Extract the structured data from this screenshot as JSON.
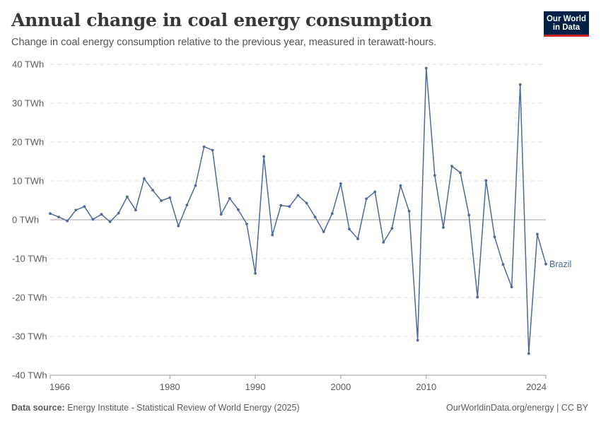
{
  "header": {
    "title": "Annual change in coal energy consumption",
    "subtitle": "Change in coal energy consumption relative to the previous year, measured in terawatt-hours."
  },
  "logo": {
    "line1": "Our World",
    "line2": "in Data"
  },
  "footer": {
    "source_label": "Data source:",
    "source_text": "Energy Institute - Statistical Review of World Energy (2025)",
    "url": "OurWorldinData.org/energy | CC BY"
  },
  "colors": {
    "series": "#4c6a9c",
    "grid": "#dddddd",
    "zero": "#a1a1a1",
    "text": "#5b5b5b"
  },
  "chart_data": {
    "type": "line",
    "title": "Annual change in coal energy consumption",
    "ylabel": "",
    "xlabel": "",
    "ylim": [
      -40,
      40
    ],
    "xlim": [
      1966,
      2024
    ],
    "y_ticks": [
      40,
      30,
      20,
      10,
      0,
      -10,
      -20,
      -30,
      -40
    ],
    "y_tick_labels": [
      "40 TWh",
      "30 TWh",
      "20 TWh",
      "10 TWh",
      "0 TWh",
      "-10 TWh",
      "-20 TWh",
      "-30 TWh",
      "-40 TWh"
    ],
    "x_ticks": [
      1966,
      1980,
      1990,
      2000,
      2010,
      2024
    ],
    "x_tick_labels": [
      "1966",
      "1980",
      "1990",
      "2000",
      "2010",
      "2024"
    ],
    "grid": true,
    "series": [
      {
        "name": "Brazil",
        "x": [
          1966,
          1967,
          1968,
          1969,
          1970,
          1971,
          1972,
          1973,
          1974,
          1975,
          1976,
          1977,
          1978,
          1979,
          1980,
          1981,
          1982,
          1983,
          1984,
          1985,
          1986,
          1987,
          1988,
          1989,
          1990,
          1991,
          1992,
          1993,
          1994,
          1995,
          1996,
          1997,
          1998,
          1999,
          2000,
          2001,
          2002,
          2003,
          2004,
          2005,
          2006,
          2007,
          2008,
          2009,
          2010,
          2011,
          2012,
          2013,
          2014,
          2015,
          2016,
          2017,
          2018,
          2019,
          2020,
          2021,
          2022,
          2023,
          2024
        ],
        "values": [
          1.6,
          0.7,
          -0.3,
          2.5,
          3.4,
          0.1,
          1.4,
          -0.5,
          1.7,
          5.9,
          2.5,
          10.6,
          7.6,
          4.9,
          5.7,
          -1.6,
          3.8,
          8.8,
          18.8,
          17.9,
          1.4,
          5.5,
          2.6,
          -1.1,
          -13.8,
          16.3,
          -3.9,
          3.7,
          3.4,
          6.3,
          4.3,
          0.7,
          -3.1,
          1.6,
          9.3,
          -2.4,
          -4.9,
          5.4,
          7.2,
          -5.8,
          -2.2,
          8.8,
          2.2,
          -31.0,
          39.0,
          11.4,
          -2.0,
          13.8,
          12.1,
          1.2,
          -19.9,
          10.1,
          -4.4,
          -11.5,
          -17.3,
          34.8,
          -34.4,
          -3.7,
          -11.4
        ]
      }
    ]
  }
}
